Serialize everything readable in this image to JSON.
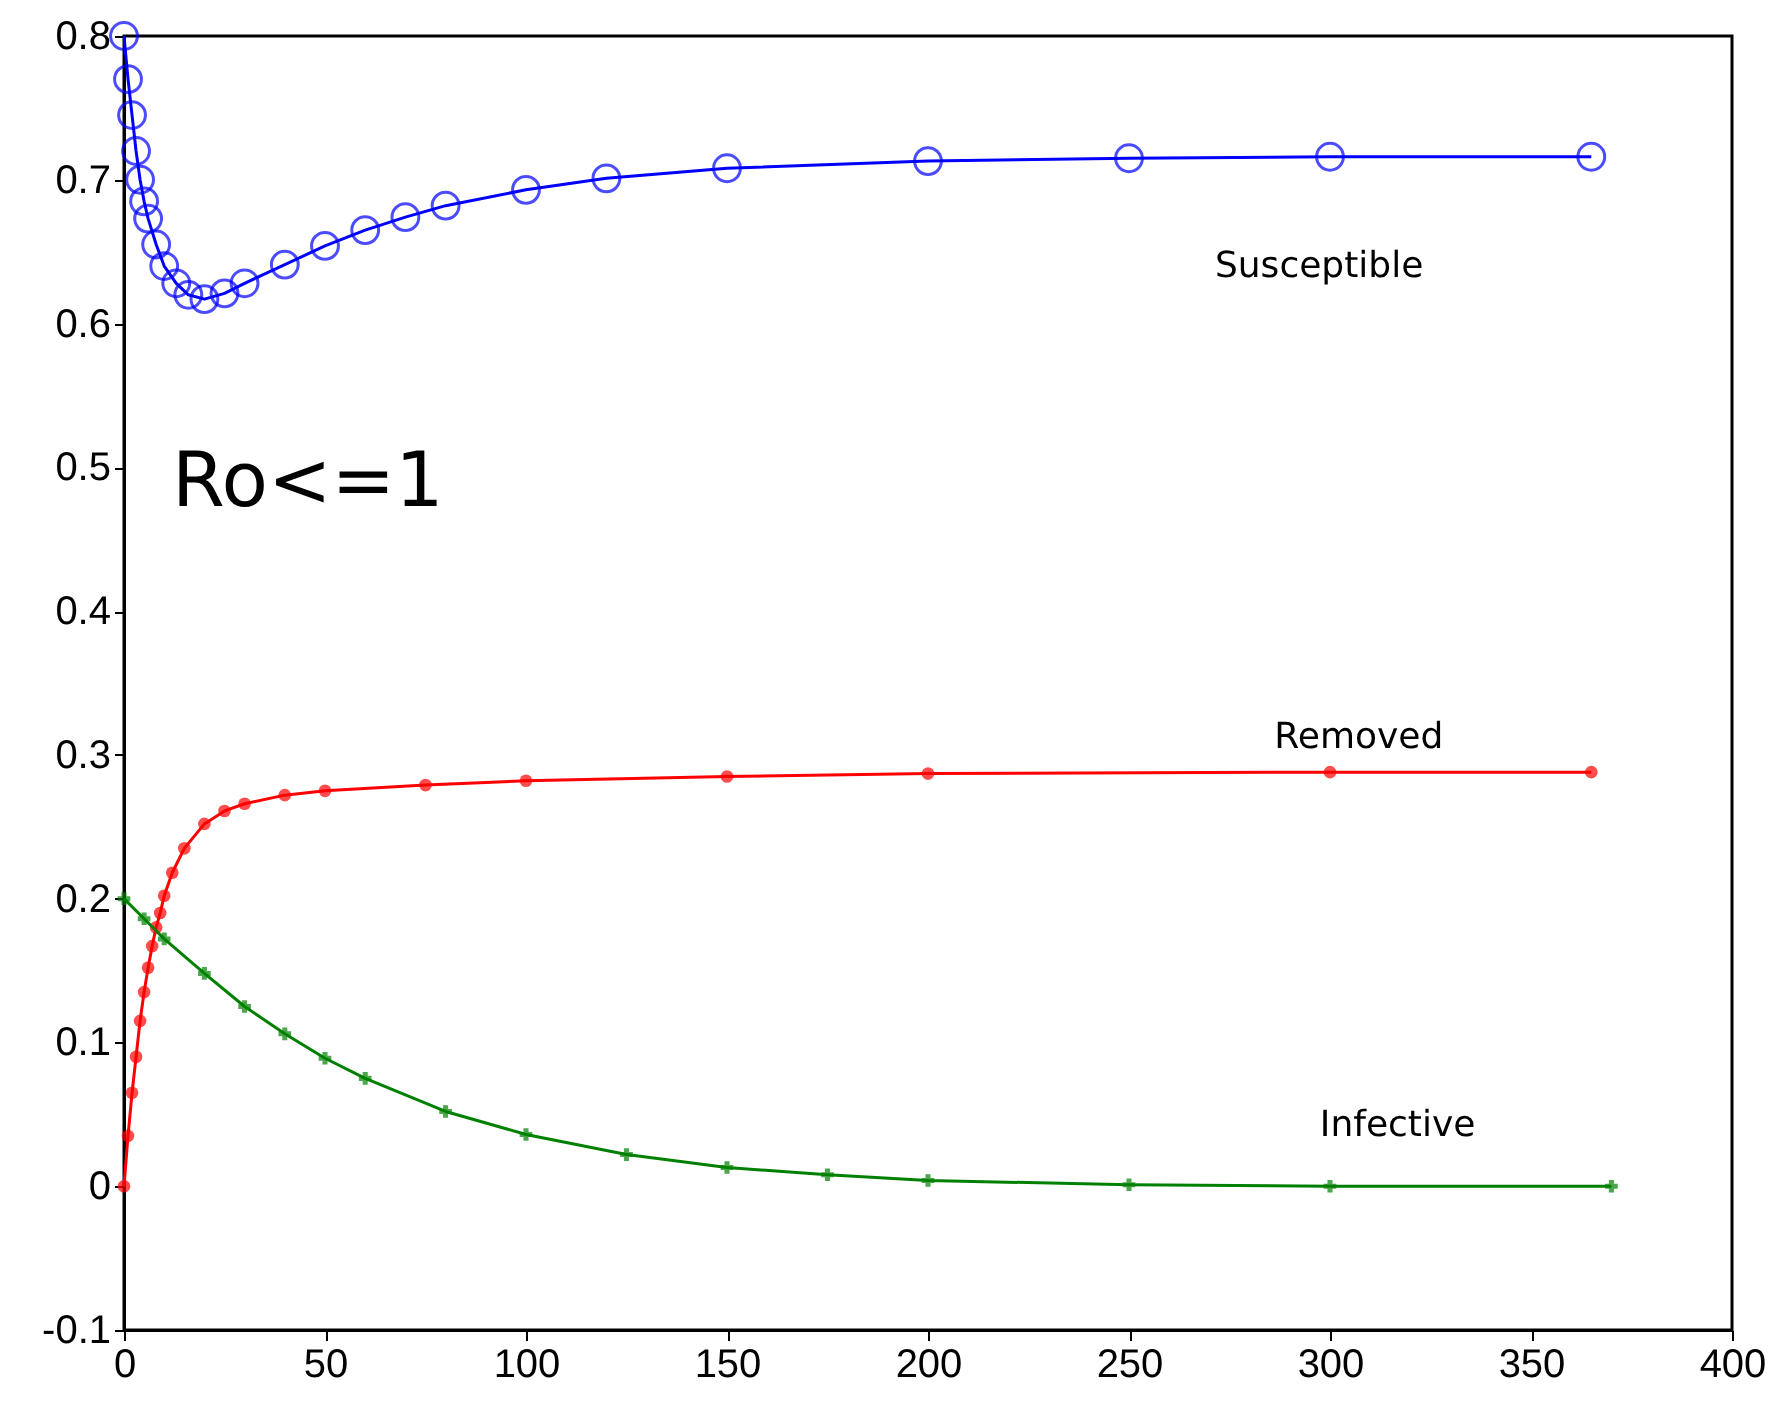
{
  "chart_data": {
    "type": "line",
    "xlim": [
      0,
      400
    ],
    "xticks": [
      0,
      50,
      100,
      150,
      200,
      250,
      300,
      350,
      400
    ],
    "ylim": [
      -0.1,
      0.8
    ],
    "yticks": [
      -0.1,
      0,
      0.1,
      0.2,
      0.3,
      0.4,
      0.5,
      0.6,
      0.7,
      0.8
    ],
    "grid": false,
    "series": [
      {
        "name": "Susceptible",
        "color": "#0000ff",
        "marker": "circle",
        "x": [
          0,
          1,
          2,
          3,
          4,
          5,
          6,
          8,
          10,
          13,
          16,
          20,
          25,
          30,
          40,
          50,
          60,
          70,
          80,
          100,
          120,
          150,
          200,
          250,
          300,
          365
        ],
        "values": [
          0.8,
          0.77,
          0.745,
          0.72,
          0.7,
          0.685,
          0.673,
          0.655,
          0.64,
          0.628,
          0.62,
          0.617,
          0.621,
          0.628,
          0.641,
          0.654,
          0.665,
          0.674,
          0.682,
          0.693,
          0.701,
          0.708,
          0.713,
          0.715,
          0.716,
          0.716
        ]
      },
      {
        "name": "Removed",
        "color": "#ff0000",
        "marker": "circle",
        "x": [
          0,
          1,
          2,
          3,
          4,
          5,
          6,
          7,
          8,
          9,
          10,
          12,
          15,
          20,
          25,
          30,
          40,
          50,
          75,
          100,
          150,
          200,
          300,
          365
        ],
        "values": [
          0,
          0.035,
          0.065,
          0.09,
          0.115,
          0.135,
          0.152,
          0.167,
          0.18,
          0.19,
          0.202,
          0.218,
          0.235,
          0.252,
          0.261,
          0.266,
          0.272,
          0.275,
          0.279,
          0.282,
          0.285,
          0.287,
          0.288,
          0.288
        ]
      },
      {
        "name": "Infective",
        "color": "#008000",
        "marker": "cross",
        "x": [
          0,
          5,
          10,
          20,
          30,
          40,
          50,
          60,
          80,
          100,
          125,
          150,
          175,
          200,
          250,
          300,
          370
        ],
        "values": [
          0.2,
          0.186,
          0.172,
          0.148,
          0.125,
          0.106,
          0.089,
          0.075,
          0.052,
          0.036,
          0.022,
          0.013,
          0.008,
          0.004,
          0.001,
          0,
          0
        ]
      }
    ],
    "annotations": [
      "Ro<=1"
    ]
  }
}
